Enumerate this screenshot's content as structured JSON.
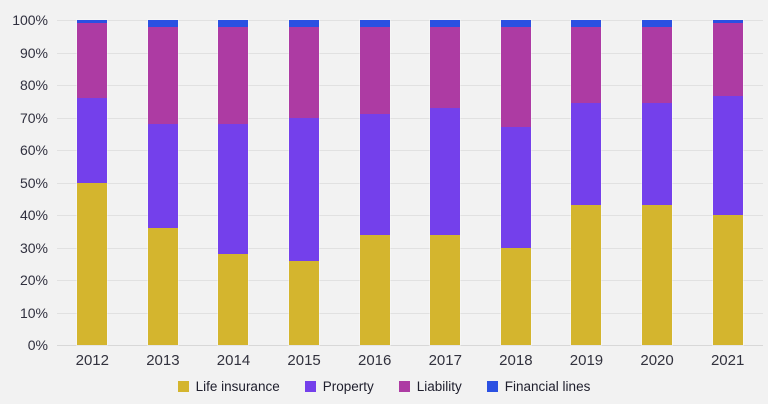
{
  "chart_data": {
    "type": "bar",
    "variant": "100-percent-stacked-column",
    "title": "",
    "xlabel": "",
    "ylabel": "",
    "ylim": [
      0,
      100
    ],
    "grid": true,
    "legend_position": "bottom",
    "categories": [
      "2012",
      "2013",
      "2014",
      "2015",
      "2016",
      "2017",
      "2018",
      "2019",
      "2020",
      "2021"
    ],
    "series": [
      {
        "name": "Life insurance",
        "color": "#D4B52E",
        "values": [
          50,
          36,
          28,
          26,
          34,
          34,
          30,
          43,
          43,
          40
        ]
      },
      {
        "name": "Property",
        "color": "#7440EB",
        "values": [
          26,
          32,
          40,
          44,
          37,
          39,
          37,
          31.5,
          31.5,
          36.5
        ]
      },
      {
        "name": "Liability",
        "color": "#AD3BA3",
        "values": [
          23,
          30,
          30,
          28,
          27,
          25,
          31,
          23.5,
          23.5,
          22.5
        ]
      },
      {
        "name": "Financial lines",
        "color": "#2B50E2",
        "values": [
          1,
          2,
          2,
          2,
          2,
          2,
          2,
          2,
          2,
          1
        ]
      }
    ],
    "y_ticks": [
      "100%",
      "90%",
      "80%",
      "70%",
      "60%",
      "50%",
      "40%",
      "30%",
      "20%",
      "10%",
      "0%"
    ]
  },
  "colors": {
    "background": "#F2F2F2",
    "gridline": "#E1E1E1",
    "baseline": "#D8D8D8",
    "y_tick_text": "#30303F",
    "x_tick_text": "#32323E",
    "legend_text": "#20202E"
  }
}
